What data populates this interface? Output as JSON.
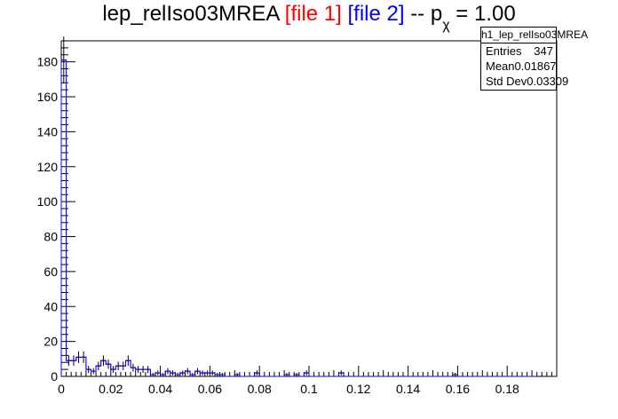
{
  "title": {
    "name": "lep_relIso03MREA",
    "file1": "[file 1]",
    "file2": "[file 2]",
    "sep": "-- p",
    "sub": "χ",
    "value": "= 1.00"
  },
  "stats": {
    "name": "h1_lep_relIso03MREA",
    "entries_label": "Entries",
    "entries": "347",
    "mean_label": "Mean",
    "mean": "0.01867",
    "std_label": "Std Dev",
    "std": "0.03309"
  },
  "colors": {
    "file1": "#ff0000",
    "file2": "#0000ff",
    "axis": "#000000"
  },
  "chart_data": {
    "type": "bar",
    "xlim": [
      0,
      0.2
    ],
    "ylim": [
      0,
      192
    ],
    "bin_width": 0.002,
    "x_ticks": [
      0,
      0.02,
      0.04,
      0.06,
      0.08,
      0.1,
      0.12,
      0.14,
      0.16,
      0.18
    ],
    "x_tick_labels": [
      "0",
      "0.02",
      "0.04",
      "0.06",
      "0.08",
      "0.1",
      "0.12",
      "0.14",
      "0.16",
      "0.18"
    ],
    "y_ticks": [
      0,
      20,
      40,
      60,
      80,
      100,
      120,
      140,
      160,
      180
    ],
    "y_tick_labels": [
      "0",
      "20",
      "40",
      "60",
      "80",
      "100",
      "120",
      "140",
      "160",
      "180"
    ],
    "series": [
      {
        "name": "[file 1]",
        "color": "#ff0000",
        "values": [
          181,
          9,
          9,
          11,
          11,
          4,
          3,
          6,
          9,
          7,
          4,
          6,
          6,
          9,
          5,
          4,
          4,
          4,
          1,
          2,
          1,
          3,
          2,
          1,
          2,
          3,
          1,
          3,
          2,
          2,
          2,
          1,
          1,
          0,
          0,
          1,
          0,
          0,
          0,
          2,
          0,
          0,
          0,
          0,
          0,
          1,
          0,
          1,
          0,
          2,
          0,
          0,
          0,
          0,
          0,
          0,
          2,
          0,
          0,
          0,
          0,
          0,
          0,
          0,
          0,
          0,
          0,
          0,
          0,
          0,
          0,
          0,
          0,
          0,
          0,
          0,
          0,
          0,
          0,
          1,
          0,
          0,
          0,
          0,
          0,
          0,
          0,
          0,
          0,
          0,
          0,
          0,
          0,
          0,
          0,
          0
        ]
      },
      {
        "name": "[file 2]",
        "color": "#0000ff",
        "values": [
          181,
          9,
          9,
          11,
          11,
          4,
          3,
          6,
          9,
          7,
          4,
          6,
          6,
          9,
          5,
          4,
          4,
          4,
          1,
          2,
          1,
          3,
          2,
          1,
          2,
          3,
          1,
          3,
          2,
          2,
          2,
          1,
          1,
          0,
          0,
          1,
          0,
          0,
          0,
          2,
          0,
          0,
          0,
          0,
          0,
          1,
          0,
          1,
          0,
          2,
          0,
          0,
          0,
          0,
          0,
          0,
          2,
          0,
          0,
          0,
          0,
          0,
          0,
          0,
          0,
          0,
          0,
          0,
          0,
          0,
          0,
          0,
          0,
          0,
          0,
          0,
          0,
          0,
          0,
          1,
          0,
          0,
          0,
          0,
          0,
          0,
          0,
          0,
          0,
          0,
          0,
          0,
          0,
          0,
          0,
          0
        ]
      }
    ]
  }
}
